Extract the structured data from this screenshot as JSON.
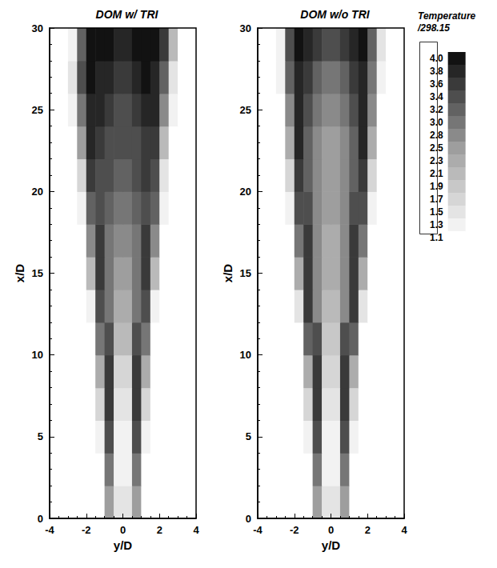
{
  "chart_data": [
    {
      "type": "heatmap",
      "title": "DOM w/ TRI",
      "xlabel": "y/D",
      "ylabel": "x/D",
      "xlim": [
        -4,
        4
      ],
      "xticks": [
        -4,
        -2,
        0,
        2,
        4
      ],
      "ylim": [
        0,
        30
      ],
      "yticks": [
        0,
        5,
        10,
        15,
        20,
        25,
        30
      ],
      "x": [
        -3.75,
        -3.25,
        -2.75,
        -2.25,
        -1.75,
        -1.25,
        -0.75,
        -0.25,
        0.25,
        0.75,
        1.25,
        1.75,
        2.25,
        2.75,
        3.25,
        3.75
      ],
      "y": [
        1,
        3,
        5,
        7,
        9,
        11,
        13,
        15,
        17,
        19,
        21,
        23,
        25,
        27,
        29
      ],
      "cells": [
        [
          1,
          1,
          1,
          1,
          1,
          1,
          2.5,
          1.5,
          1.5,
          2.5,
          1,
          1,
          1,
          1,
          1,
          1
        ],
        [
          1,
          1,
          1,
          1,
          1,
          1.1,
          3.0,
          1.3,
          1.3,
          3.0,
          1.1,
          1,
          1,
          1,
          1,
          1
        ],
        [
          1,
          1,
          1,
          1,
          1,
          1.3,
          3.4,
          1.3,
          1.3,
          3.4,
          1.3,
          1,
          1,
          1,
          1,
          1
        ],
        [
          1,
          1,
          1,
          1,
          1,
          1.7,
          3.6,
          1.5,
          1.5,
          3.6,
          1.7,
          1,
          1,
          1,
          1,
          1
        ],
        [
          1,
          1,
          1,
          1,
          1,
          2.3,
          3.6,
          1.7,
          1.7,
          3.6,
          2.3,
          1,
          1,
          1,
          1,
          1
        ],
        [
          1,
          1,
          1,
          1,
          1.1,
          3.0,
          3.4,
          2.1,
          2.1,
          3.4,
          3.0,
          1.1,
          1,
          1,
          1,
          1
        ],
        [
          1,
          1,
          1,
          1,
          1.3,
          3.4,
          3.0,
          2.3,
          2.3,
          3.0,
          3.4,
          1.3,
          1,
          1,
          1,
          1
        ],
        [
          1,
          1,
          1,
          1,
          2.1,
          3.6,
          3.0,
          2.5,
          2.5,
          3.0,
          3.6,
          2.1,
          1,
          1,
          1,
          1
        ],
        [
          1,
          1,
          1,
          1.1,
          2.8,
          3.6,
          3.0,
          2.8,
          2.8,
          3.0,
          3.6,
          2.8,
          1.1,
          1,
          1,
          1
        ],
        [
          1,
          1,
          1,
          1.3,
          3.2,
          3.4,
          3.2,
          3.0,
          3.0,
          3.2,
          3.4,
          3.2,
          1.3,
          1,
          1,
          1
        ],
        [
          1,
          1,
          1,
          1.7,
          3.6,
          3.4,
          3.4,
          3.2,
          3.2,
          3.4,
          3.6,
          3.4,
          1.5,
          1,
          1,
          1
        ],
        [
          1,
          1,
          1.1,
          2.5,
          3.8,
          3.6,
          3.4,
          3.4,
          3.4,
          3.4,
          3.6,
          3.6,
          2.1,
          1.1,
          1,
          1
        ],
        [
          1,
          1,
          1.3,
          3.0,
          3.8,
          3.8,
          3.6,
          3.4,
          3.4,
          3.6,
          3.8,
          3.8,
          2.8,
          1.3,
          1,
          1
        ],
        [
          1,
          1,
          1.5,
          3.4,
          4.0,
          3.8,
          3.8,
          3.6,
          3.6,
          3.8,
          4.0,
          3.8,
          3.2,
          1.5,
          1,
          1
        ],
        [
          1,
          1,
          1.3,
          3.2,
          4.0,
          4.0,
          4.0,
          3.8,
          3.8,
          4.0,
          4.0,
          4.0,
          3.6,
          2.1,
          1,
          1
        ]
      ]
    },
    {
      "type": "heatmap",
      "title": "DOM w/o TRI",
      "xlabel": "y/D",
      "ylabel": "x/D",
      "xlim": [
        -4,
        4
      ],
      "xticks": [
        -4,
        -2,
        0,
        2,
        4
      ],
      "ylim": [
        0,
        30
      ],
      "yticks": [
        0,
        5,
        10,
        15,
        20,
        25,
        30
      ],
      "x": [
        -3.75,
        -3.25,
        -2.75,
        -2.25,
        -1.75,
        -1.25,
        -0.75,
        -0.25,
        0.25,
        0.75,
        1.25,
        1.75,
        2.25,
        2.75,
        3.25,
        3.75
      ],
      "y": [
        1,
        3,
        5,
        7,
        9,
        11,
        13,
        15,
        17,
        19,
        21,
        23,
        25,
        27,
        29
      ],
      "cells": [
        [
          1,
          1,
          1,
          1,
          1,
          1,
          2.5,
          1.5,
          1.5,
          2.5,
          1,
          1,
          1,
          1,
          1,
          1
        ],
        [
          1,
          1,
          1,
          1,
          1,
          1.1,
          3.0,
          1.3,
          1.3,
          3.0,
          1.1,
          1,
          1,
          1,
          1,
          1
        ],
        [
          1,
          1,
          1,
          1,
          1,
          1.3,
          3.4,
          1.3,
          1.3,
          3.4,
          1.3,
          1,
          1,
          1,
          1,
          1
        ],
        [
          1,
          1,
          1,
          1,
          1,
          1.7,
          3.6,
          1.5,
          1.5,
          3.6,
          1.7,
          1,
          1,
          1,
          1,
          1
        ],
        [
          1,
          1,
          1,
          1,
          1,
          2.3,
          3.6,
          1.7,
          1.7,
          3.6,
          2.3,
          1,
          1,
          1,
          1,
          1
        ],
        [
          1,
          1,
          1,
          1,
          1.1,
          3.2,
          3.4,
          1.9,
          1.9,
          3.4,
          3.2,
          1.1,
          1,
          1,
          1,
          1
        ],
        [
          1,
          1,
          1,
          1,
          1.5,
          3.6,
          2.8,
          2.1,
          2.1,
          2.8,
          3.6,
          1.5,
          1,
          1,
          1,
          1
        ],
        [
          1,
          1,
          1,
          1,
          2.3,
          3.6,
          2.8,
          2.3,
          2.3,
          2.8,
          3.6,
          2.3,
          1,
          1,
          1,
          1
        ],
        [
          1,
          1,
          1,
          1.1,
          3.0,
          3.6,
          2.8,
          2.3,
          2.3,
          2.8,
          3.6,
          3.0,
          1.1,
          1,
          1,
          1
        ],
        [
          1,
          1,
          1,
          1.3,
          3.4,
          3.4,
          2.8,
          2.5,
          2.5,
          2.8,
          3.4,
          3.4,
          1.3,
          1,
          1,
          1
        ],
        [
          1,
          1,
          1,
          1.7,
          3.6,
          3.2,
          2.8,
          2.5,
          2.5,
          2.8,
          3.2,
          3.6,
          1.7,
          1,
          1,
          1
        ],
        [
          1,
          1,
          1,
          2.3,
          3.8,
          3.2,
          2.8,
          2.5,
          2.5,
          2.8,
          3.2,
          3.8,
          2.3,
          1,
          1,
          1
        ],
        [
          1,
          1,
          1.1,
          2.8,
          3.8,
          3.4,
          3.0,
          2.8,
          2.8,
          3.0,
          3.4,
          3.8,
          2.8,
          1.1,
          1,
          1
        ],
        [
          1,
          1,
          1.3,
          3.2,
          3.8,
          3.6,
          3.2,
          3.0,
          3.0,
          3.2,
          3.6,
          3.8,
          3.0,
          1.3,
          1,
          1
        ],
        [
          1,
          1,
          1.3,
          3.4,
          4.0,
          3.8,
          3.6,
          3.4,
          3.4,
          3.6,
          3.8,
          4.0,
          3.2,
          1.5,
          1,
          1
        ]
      ],
      "colorbar": {
        "title": "Temperature /298.15",
        "levels": [
          1.1,
          1.3,
          1.5,
          1.7,
          1.9,
          2.1,
          2.3,
          2.5,
          2.8,
          {
            "value": 3,
            "label": "3.0"
          },
          3.2,
          3.4,
          3.6,
          3.8,
          {
            "value": 4,
            "label": "4.0"
          }
        ],
        "colors": [
          "#ffffff",
          "#f2f2f2",
          "#e4e4e4",
          "#d6d6d6",
          "#c8c8c8",
          "#bababa",
          "#acacac",
          "#9e9e9e",
          "#8a8a8a",
          "#767676",
          "#626262",
          "#4e4e4e",
          "#3a3a3a",
          "#262626",
          "#121212"
        ]
      }
    }
  ]
}
